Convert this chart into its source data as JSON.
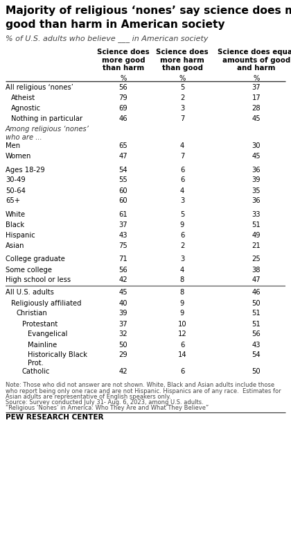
{
  "title_line1": "Majority of religious ‘nones’ say science does more",
  "title_line2": "good than harm in American society",
  "subtitle": "% of U.S. adults who believe ___ in American society",
  "col_headers": [
    "Science does\nmore good\nthan harm",
    "Science does\nmore harm\nthan good",
    "Science does equal\namounts of good\nand harm"
  ],
  "rows": [
    {
      "label": "All religious ‘nones’",
      "indent": 0,
      "bold": false,
      "italic": false,
      "vals": [
        56,
        5,
        37
      ],
      "space_after": false
    },
    {
      "label": "Atheist",
      "indent": 1,
      "bold": false,
      "italic": false,
      "vals": [
        79,
        2,
        17
      ],
      "space_after": false
    },
    {
      "label": "Agnostic",
      "indent": 1,
      "bold": false,
      "italic": false,
      "vals": [
        69,
        3,
        28
      ],
      "space_after": false
    },
    {
      "label": "Nothing in particular",
      "indent": 1,
      "bold": false,
      "italic": false,
      "vals": [
        46,
        7,
        45
      ],
      "space_after": false
    },
    {
      "label": "Among religious ‘nones’\nwho are ...",
      "indent": 0,
      "bold": false,
      "italic": true,
      "vals": [
        null,
        null,
        null
      ],
      "space_after": false
    },
    {
      "label": "Men",
      "indent": 0,
      "bold": false,
      "italic": false,
      "vals": [
        65,
        4,
        30
      ],
      "space_after": false
    },
    {
      "label": "Women",
      "indent": 0,
      "bold": false,
      "italic": false,
      "vals": [
        47,
        7,
        45
      ],
      "space_after": true
    },
    {
      "label": "Ages 18-29",
      "indent": 0,
      "bold": false,
      "italic": false,
      "vals": [
        54,
        6,
        36
      ],
      "space_after": false
    },
    {
      "label": "30-49",
      "indent": 0,
      "bold": false,
      "italic": false,
      "vals": [
        55,
        6,
        39
      ],
      "space_after": false
    },
    {
      "label": "50-64",
      "indent": 0,
      "bold": false,
      "italic": false,
      "vals": [
        60,
        4,
        35
      ],
      "space_after": false
    },
    {
      "label": "65+",
      "indent": 0,
      "bold": false,
      "italic": false,
      "vals": [
        60,
        3,
        36
      ],
      "space_after": true
    },
    {
      "label": "White",
      "indent": 0,
      "bold": false,
      "italic": false,
      "vals": [
        61,
        5,
        33
      ],
      "space_after": false
    },
    {
      "label": "Black",
      "indent": 0,
      "bold": false,
      "italic": false,
      "vals": [
        37,
        9,
        51
      ],
      "space_after": false
    },
    {
      "label": "Hispanic",
      "indent": 0,
      "bold": false,
      "italic": false,
      "vals": [
        43,
        6,
        49
      ],
      "space_after": false
    },
    {
      "label": "Asian",
      "indent": 0,
      "bold": false,
      "italic": false,
      "vals": [
        75,
        2,
        21
      ],
      "space_after": true
    },
    {
      "label": "College graduate",
      "indent": 0,
      "bold": false,
      "italic": false,
      "vals": [
        71,
        3,
        25
      ],
      "space_after": false
    },
    {
      "label": "Some college",
      "indent": 0,
      "bold": false,
      "italic": false,
      "vals": [
        56,
        4,
        38
      ],
      "space_after": false
    },
    {
      "label": "High school or less",
      "indent": 0,
      "bold": false,
      "italic": false,
      "vals": [
        42,
        8,
        47
      ],
      "space_after": false,
      "separator_after": true
    },
    {
      "label": "All U.S. adults",
      "indent": 0,
      "bold": false,
      "italic": false,
      "vals": [
        45,
        8,
        46
      ],
      "space_after": false
    },
    {
      "label": "Religiously affiliated",
      "indent": 1,
      "bold": false,
      "italic": false,
      "vals": [
        40,
        9,
        50
      ],
      "space_after": false
    },
    {
      "label": "Christian",
      "indent": 2,
      "bold": false,
      "italic": false,
      "vals": [
        39,
        9,
        51
      ],
      "space_after": false
    },
    {
      "label": "Protestant",
      "indent": 3,
      "bold": false,
      "italic": false,
      "vals": [
        37,
        10,
        51
      ],
      "space_after": false
    },
    {
      "label": "Evangelical",
      "indent": 4,
      "bold": false,
      "italic": false,
      "vals": [
        32,
        12,
        56
      ],
      "space_after": false
    },
    {
      "label": "Mainline",
      "indent": 4,
      "bold": false,
      "italic": false,
      "vals": [
        50,
        6,
        43
      ],
      "space_after": false
    },
    {
      "label": "Historically Black\nProt.",
      "indent": 4,
      "bold": false,
      "italic": false,
      "vals": [
        29,
        14,
        54
      ],
      "space_after": false
    },
    {
      "label": "Catholic",
      "indent": 3,
      "bold": false,
      "italic": false,
      "vals": [
        42,
        6,
        50
      ],
      "space_after": false
    }
  ],
  "note1": "Note: Those who did not answer are not shown. White, Black and Asian adults include those",
  "note2": "who report being only one race and are not Hispanic. Hispanics are of any race.  Estimates for",
  "note3": "Asian adults are representative of English speakers only.",
  "note4": "Source: Survey conducted July 31- Aug. 6, 2023, among U.S. adults.",
  "note5": "“Religious ‘Nones’ in America: Who They Are and What They Believe”",
  "source_label": "PEW RESEARCH CENTER",
  "bg_color": "#ffffff"
}
